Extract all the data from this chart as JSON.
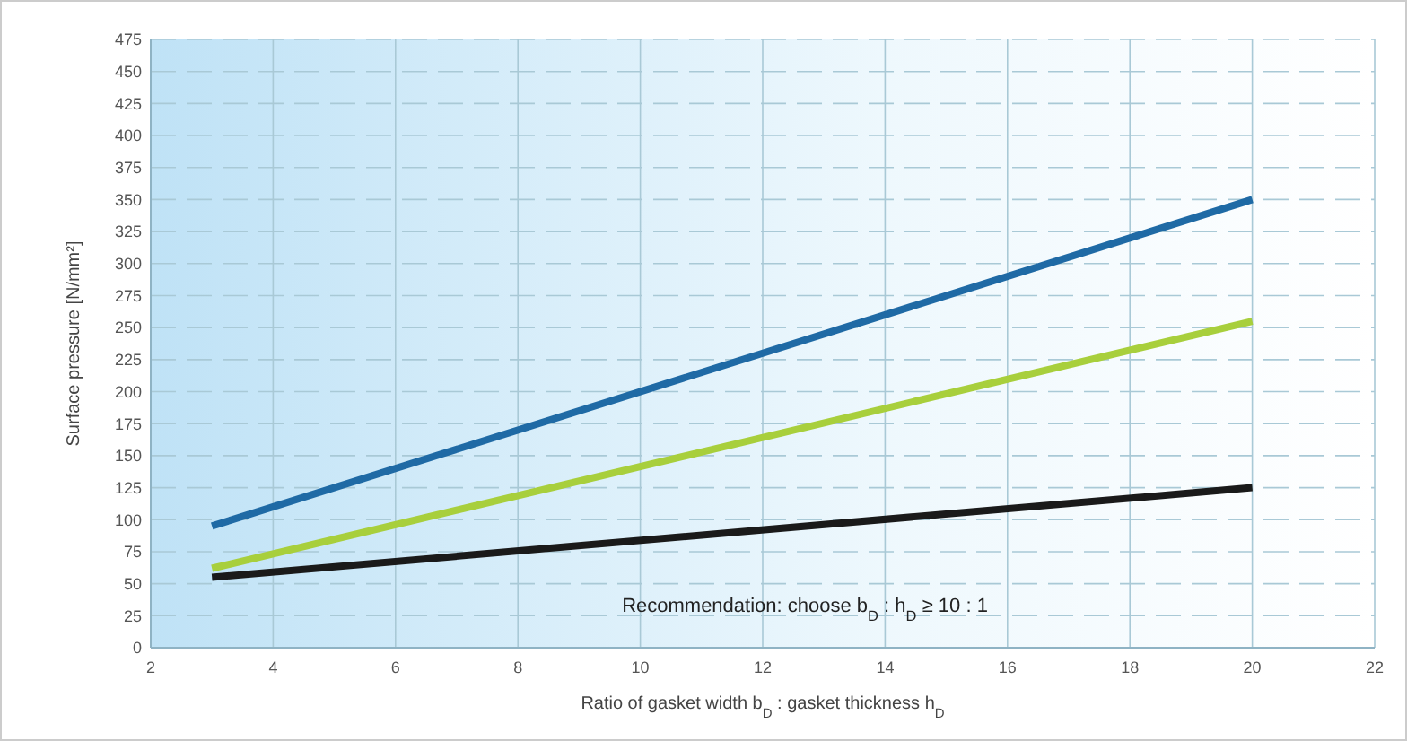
{
  "chart_data": {
    "type": "line",
    "xlabel": "Ratio of gasket width b$_{D}$ : gasket thickness h$_{D}$",
    "ylabel": "Surface pressure [N/mm²]",
    "annotations": [
      "Recommendation: choose b$_{D}$ : h$_{D}$ ≥ 10 : 1"
    ],
    "x": [
      3,
      20
    ],
    "series": [
      {
        "color": "#1f6aa5",
        "values": [
          95,
          350
        ]
      },
      {
        "color": "#a8cf3c",
        "values": [
          62,
          255
        ]
      },
      {
        "color": "#1a1a1a",
        "values": [
          55,
          125
        ]
      }
    ],
    "xlim": [
      2,
      22
    ],
    "xticks": [
      2,
      4,
      6,
      8,
      10,
      12,
      14,
      16,
      18,
      20,
      22
    ],
    "ylim": [
      0,
      475
    ],
    "yticks": [
      0,
      25,
      50,
      75,
      100,
      125,
      150,
      175,
      200,
      225,
      250,
      275,
      300,
      325,
      350,
      375,
      400,
      425,
      450,
      475
    ],
    "grid": true,
    "line_style": "solid",
    "marker": "none"
  }
}
